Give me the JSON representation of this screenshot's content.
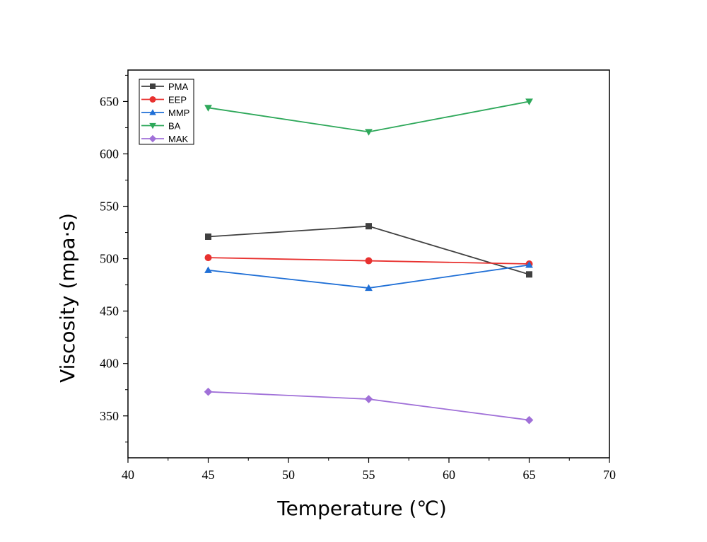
{
  "chart_data": {
    "type": "line",
    "title": "",
    "xlabel": "Temperature (℃)",
    "ylabel": "Viscosity (mpa·s)",
    "xlim": [
      40,
      70
    ],
    "ylim": [
      310,
      680
    ],
    "x_ticks": [
      40,
      45,
      50,
      55,
      60,
      65,
      70
    ],
    "y_ticks": [
      350,
      400,
      450,
      500,
      550,
      600,
      650
    ],
    "x": [
      45,
      55,
      65
    ],
    "grid": false,
    "legend_position": "top-left",
    "series": [
      {
        "name": "PMA",
        "values": [
          521,
          531,
          485
        ],
        "color": "#404040",
        "marker": "square"
      },
      {
        "name": "EEP",
        "values": [
          501,
          498,
          495
        ],
        "color": "#e8312f",
        "marker": "circle"
      },
      {
        "name": "MMP",
        "values": [
          489,
          472,
          494
        ],
        "color": "#1f6fd6",
        "marker": "triangle-up"
      },
      {
        "name": "BA",
        "values": [
          644,
          621,
          650
        ],
        "color": "#2ea85a",
        "marker": "triangle-down"
      },
      {
        "name": "MAK",
        "values": [
          373,
          366,
          346
        ],
        "color": "#a070d8",
        "marker": "diamond"
      }
    ]
  }
}
